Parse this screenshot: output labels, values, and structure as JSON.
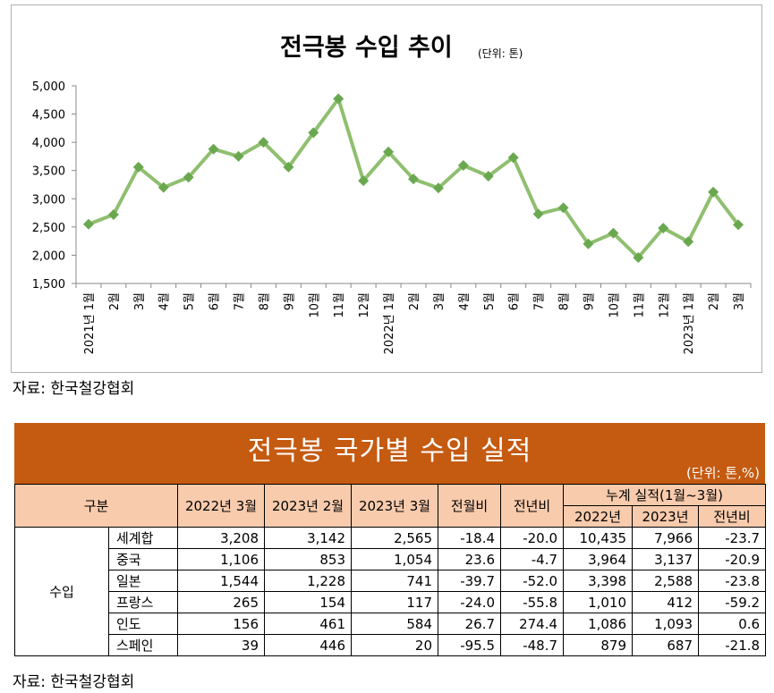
{
  "chart_data": {
    "type": "line",
    "title": "전극봉 수입 추이",
    "unit_label": "(단위: 톤)",
    "ylim": [
      1500,
      5000
    ],
    "yticks": [
      "5,000",
      "4,500",
      "4,000",
      "3,500",
      "3,000",
      "2,500",
      "2,000",
      "1,500"
    ],
    "ytick_values": [
      5000,
      4500,
      4000,
      3500,
      3000,
      2500,
      2000,
      1500
    ],
    "categories": [
      "2021년 1월",
      "2월",
      "3월",
      "4월",
      "5월",
      "6월",
      "7월",
      "8월",
      "9월",
      "10월",
      "11월",
      "12월",
      "2022년 1월",
      "2월",
      "3월",
      "4월",
      "5월",
      "6월",
      "7월",
      "8월",
      "9월",
      "10월",
      "11월",
      "12월",
      "2023년 1월",
      "2월",
      "3월"
    ],
    "values": [
      2550,
      2720,
      3560,
      3200,
      3380,
      3880,
      3750,
      4000,
      3560,
      4170,
      4770,
      3320,
      3830,
      3350,
      3190,
      3590,
      3400,
      3730,
      2730,
      2840,
      2200,
      2390,
      1960,
      2480,
      2240,
      3120,
      2540
    ],
    "series_color": "#8fbf6f",
    "marker_color": "#6aa84f",
    "source": "자료: 한국철강협회"
  },
  "table": {
    "title": "전극봉 국가별 수입 실적",
    "unit": "(단위: 톤,%)",
    "headers": {
      "category": "구분",
      "c1": "2022년 3월",
      "c2": "2023년 2월",
      "c3": "2023년 3월",
      "c4": "전월비",
      "c5": "전년비",
      "cumulative": "누계 실적(1월~3월)",
      "cum1": "2022년",
      "cum2": "2023년",
      "cum3": "전년비"
    },
    "group_label": "수입",
    "rows": [
      {
        "name": "세계합",
        "v": [
          "3,208",
          "3,142",
          "2,565",
          "-18.4",
          "-20.0",
          "10,435",
          "7,966",
          "-23.7"
        ]
      },
      {
        "name": "중국",
        "v": [
          "1,106",
          "853",
          "1,054",
          "23.6",
          "-4.7",
          "3,964",
          "3,137",
          "-20.9"
        ]
      },
      {
        "name": "일본",
        "v": [
          "1,544",
          "1,228",
          "741",
          "-39.7",
          "-52.0",
          "3,398",
          "2,588",
          "-23.8"
        ]
      },
      {
        "name": "프랑스",
        "v": [
          "265",
          "154",
          "117",
          "-24.0",
          "-55.8",
          "1,010",
          "412",
          "-59.2"
        ]
      },
      {
        "name": "인도",
        "v": [
          "156",
          "461",
          "584",
          "26.7",
          "274.4",
          "1,086",
          "1,093",
          "0.6"
        ]
      },
      {
        "name": "스페인",
        "v": [
          "39",
          "446",
          "20",
          "-95.5",
          "-48.7",
          "879",
          "687",
          "-21.8"
        ]
      }
    ],
    "source": "자료: 한국철강협회",
    "banner_color": "#c55a11",
    "header_color": "#f8cbad"
  }
}
